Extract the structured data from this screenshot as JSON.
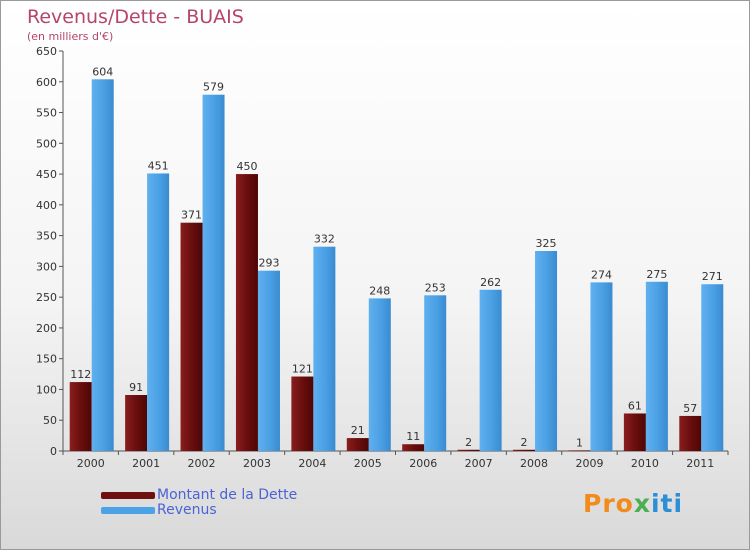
{
  "chart_data": {
    "type": "bar",
    "title": "Revenus/Dette - BUAIS",
    "subtitle": "(en milliers d'€)",
    "categories": [
      "2000",
      "2001",
      "2002",
      "2003",
      "2004",
      "2005",
      "2006",
      "2007",
      "2008",
      "2009",
      "2010",
      "2011"
    ],
    "series": [
      {
        "name": "Montant de la Dette",
        "color": "#7a1414",
        "values": [
          112,
          91,
          371,
          450,
          121,
          21,
          11,
          2,
          2,
          1,
          61,
          57
        ]
      },
      {
        "name": "Revenus",
        "color": "#4ba2e6",
        "values": [
          604,
          451,
          579,
          293,
          332,
          248,
          253,
          262,
          325,
          274,
          275,
          271
        ]
      }
    ],
    "ylim": [
      0,
      650
    ],
    "yticks": [
      0,
      50,
      100,
      150,
      200,
      250,
      300,
      350,
      400,
      450,
      500,
      550,
      600,
      650
    ],
    "grid": false,
    "legend_position": "bottom-left"
  },
  "legend": {
    "debt_label": "Montant de la Dette",
    "revenue_label": "Revenus"
  },
  "logo": {
    "part1": "Pro",
    "part2": "x",
    "part3": "iti"
  },
  "colors": {
    "title": "#b5446e",
    "legend_text": "#4b63d6"
  }
}
